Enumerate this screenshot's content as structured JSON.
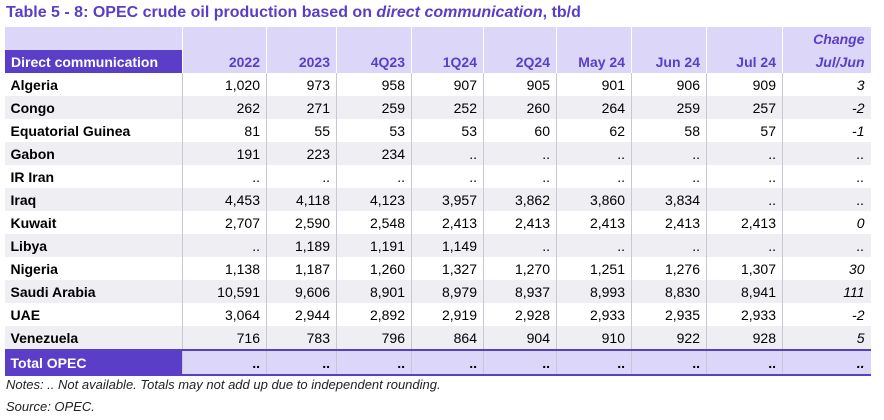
{
  "title": {
    "prefix": "Table 5 - 8: OPEC crude oil production based on ",
    "italic": "direct communication",
    "suffix": ", tb/d"
  },
  "table": {
    "header": {
      "first": "Direct communication",
      "columns": [
        "2022",
        "2023",
        "4Q23",
        "1Q24",
        "2Q24",
        "May 24",
        "Jun 24",
        "Jul 24"
      ],
      "change_top": "Change",
      "change_bottom": "Jul/Jun"
    },
    "rows": [
      [
        "Algeria",
        "1,020",
        "973",
        "958",
        "907",
        "905",
        "901",
        "906",
        "909",
        "3"
      ],
      [
        "Congo",
        "262",
        "271",
        "259",
        "252",
        "260",
        "264",
        "259",
        "257",
        "-2"
      ],
      [
        "Equatorial Guinea",
        "81",
        "55",
        "53",
        "53",
        "60",
        "62",
        "58",
        "57",
        "-1"
      ],
      [
        "Gabon",
        "191",
        "223",
        "234",
        "..",
        "..",
        "..",
        "..",
        "..",
        ".."
      ],
      [
        "IR Iran",
        "..",
        "..",
        "..",
        "..",
        "..",
        "..",
        "..",
        "..",
        ".."
      ],
      [
        "Iraq",
        "4,453",
        "4,118",
        "4,123",
        "3,957",
        "3,862",
        "3,860",
        "3,834",
        "..",
        ".."
      ],
      [
        "Kuwait",
        "2,707",
        "2,590",
        "2,548",
        "2,413",
        "2,413",
        "2,413",
        "2,413",
        "2,413",
        "0"
      ],
      [
        "Libya",
        "..",
        "1,189",
        "1,191",
        "1,149",
        "..",
        "..",
        "..",
        "..",
        ".."
      ],
      [
        "Nigeria",
        "1,138",
        "1,187",
        "1,260",
        "1,327",
        "1,270",
        "1,251",
        "1,276",
        "1,307",
        "30"
      ],
      [
        "Saudi Arabia",
        "10,591",
        "9,606",
        "8,901",
        "8,979",
        "8,937",
        "8,993",
        "8,830",
        "8,941",
        "111"
      ],
      [
        "UAE",
        "3,064",
        "2,944",
        "2,892",
        "2,919",
        "2,928",
        "2,933",
        "2,935",
        "2,933",
        "-2"
      ],
      [
        "Venezuela",
        "716",
        "783",
        "796",
        "864",
        "904",
        "910",
        "922",
        "928",
        "5"
      ]
    ],
    "total": [
      "Total  OPEC",
      "..",
      "..",
      "..",
      "..",
      "..",
      "..",
      "..",
      "..",
      ".."
    ]
  },
  "notes": "Notes:  .. Not available. Totals may not add up due to independent rounding.",
  "source": "Source: OPEC."
}
